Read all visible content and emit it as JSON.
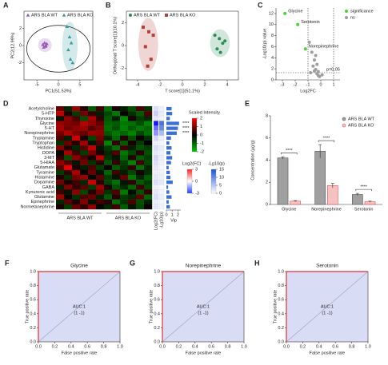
{
  "chart_data": [
    {
      "type": "scatter",
      "panel": "A",
      "xlabel": "PC1(51.53%)",
      "ylabel": "PC2(12.99%)",
      "xlim": [
        -8,
        8
      ],
      "ylim": [
        -4,
        4
      ],
      "xticks": [
        -5,
        0,
        5
      ],
      "yticks": [
        -2,
        0,
        2
      ],
      "legend": "upper left",
      "series": [
        {
          "name": "ARS BLA WT",
          "color": "#9b59b6",
          "marker": "triangle",
          "x": [
            -3.6,
            -3.2,
            -3.0,
            -2.7,
            -3.4,
            -2.9
          ],
          "values": [
            0.1,
            0.3,
            -0.1,
            0.2,
            -0.2,
            0.0
          ]
        },
        {
          "name": "ARS BLA KO",
          "color": "#3a9a9a",
          "marker": "triangle",
          "x": [
            2.0,
            2.6,
            3.0,
            2.3,
            2.8,
            3.3
          ],
          "values": [
            2.2,
            1.0,
            0.3,
            -0.5,
            -1.6,
            -2.0
          ]
        }
      ]
    },
    {
      "type": "scatter",
      "panel": "B",
      "xlabel": "T score[1](51.1%)",
      "ylabel": "Orthogonal T score[1](10.1%)",
      "xlim": [
        -5,
        5
      ],
      "ylim": [
        -3,
        3
      ],
      "xticks": [
        -4,
        -2,
        0,
        2,
        4
      ],
      "yticks": [
        -2,
        0,
        2
      ],
      "legend": "upper left",
      "series": [
        {
          "name": "ARS BLA WT",
          "color": "#2e8b57",
          "marker": "circle",
          "x": [
            2.9,
            3.3,
            3.6,
            3.1,
            3.8,
            3.4
          ],
          "values": [
            0.9,
            0.6,
            0.2,
            -0.3,
            0.4,
            -0.6
          ]
        },
        {
          "name": "ARS BLA KO",
          "color": "#b5403a",
          "marker": "square",
          "x": [
            -3.5,
            -3.0,
            -2.6,
            -3.3,
            -2.8,
            -3.1
          ],
          "values": [
            1.6,
            1.2,
            0.9,
            -0.1,
            -1.2,
            -1.8
          ]
        }
      ]
    },
    {
      "type": "scatter",
      "panel": "C",
      "xlabel": "Log2FC",
      "ylabel": "-Log10(p) value",
      "xlim": [
        -3.5,
        1.5
      ],
      "ylim": [
        0,
        13
      ],
      "xticks": [
        -3,
        -2,
        -1,
        0,
        1
      ],
      "yticks": [
        0,
        2,
        4,
        6,
        8,
        10,
        12
      ],
      "legend": "outside right",
      "hline": 1.3,
      "vlines": [
        -1,
        1
      ],
      "threshold_label": "p=0.05",
      "series": [
        {
          "name": "significance",
          "color": "#4cd137",
          "marker": "circle",
          "x": [
            -2.8,
            -1.8,
            -1.2
          ],
          "values": [
            12.0,
            10.0,
            5.6
          ],
          "labels": [
            "Glycine",
            "Serotonin",
            "Norepinephrine"
          ]
        },
        {
          "name": "ns",
          "color": "#9e9e9e",
          "marker": "circle",
          "x": [
            -0.9,
            -0.7,
            -0.6,
            -0.5,
            -0.4,
            -0.4,
            -0.3,
            -0.3,
            -0.2,
            -0.2,
            -0.1,
            -0.5,
            -0.8,
            0.1
          ],
          "values": [
            6.8,
            5.0,
            2.5,
            1.6,
            1.9,
            4.4,
            1.1,
            2.8,
            0.8,
            1.5,
            0.6,
            3.6,
            1.3,
            0.9
          ]
        }
      ]
    },
    {
      "type": "heatmap",
      "panel": "D",
      "rows": [
        "Acetylcholine",
        "5-HTP",
        "Thyroxine",
        "Glycine",
        "5-HT",
        "Norepinephrine",
        "Tryptamine",
        "Tryptophan",
        "Histidine",
        "DOPA",
        "3-MT",
        "5-HIAA",
        "Glutamate",
        "Tyramine",
        "Histamine",
        "Dopamine",
        "GABA",
        "Kynurenic acid",
        "Glutamine",
        "Epinephrine",
        "Normetanephrine"
      ],
      "groups": [
        "ARS BLA WT",
        "ARS BLA KO"
      ],
      "values": [
        [
          0.8,
          -0.4,
          1.2,
          0.3,
          -0.9,
          0.5,
          -1.1,
          0.2,
          -0.3,
          -0.8,
          0.6,
          -0.5
        ],
        [
          1.5,
          0.2,
          -0.6,
          0.9,
          0.4,
          -0.3,
          -0.7,
          -1.2,
          0.1,
          -0.5,
          -0.9,
          0.6
        ],
        [
          -0.2,
          1.1,
          0.6,
          -0.8,
          1.3,
          0.4,
          -0.9,
          -0.3,
          -1.4,
          0.2,
          -0.6,
          -0.4
        ],
        [
          1.2,
          1.0,
          0.9,
          1.4,
          1.1,
          0.8,
          -1.0,
          -0.9,
          -1.2,
          -1.1,
          -0.8,
          -1.3
        ],
        [
          1.3,
          0.9,
          1.1,
          1.2,
          0.7,
          1.0,
          -1.1,
          -0.8,
          -1.3,
          -0.9,
          -1.2,
          -1.0
        ],
        [
          0.9,
          1.4,
          1.0,
          0.8,
          1.2,
          1.1,
          -0.9,
          -1.2,
          -1.0,
          -1.3,
          -0.7,
          -1.1
        ],
        [
          0.6,
          -0.3,
          1.6,
          0.2,
          -0.7,
          0.9,
          -0.4,
          -1.0,
          0.3,
          -0.8,
          0.1,
          -0.5
        ],
        [
          -0.5,
          0.8,
          0.3,
          1.2,
          -0.2,
          0.6,
          -1.3,
          0.4,
          -0.9,
          0.2,
          -0.6,
          0.0
        ],
        [
          1.0,
          0.3,
          -0.4,
          0.7,
          1.5,
          -0.2,
          -0.6,
          -1.1,
          0.5,
          -0.3,
          -0.8,
          -0.6
        ],
        [
          -0.1,
          1.3,
          0.5,
          -0.6,
          0.9,
          0.2,
          -0.4,
          0.6,
          -1.2,
          -0.7,
          0.3,
          -0.8
        ],
        [
          0.4,
          -0.8,
          1.1,
          0.6,
          0.2,
          1.4,
          -0.5,
          -0.2,
          -1.0,
          0.3,
          -0.9,
          -0.6
        ],
        [
          1.1,
          0.6,
          -0.2,
          0.9,
          -0.5,
          0.3,
          -0.8,
          0.4,
          -0.6,
          -1.3,
          0.5,
          -0.7
        ],
        [
          0.7,
          1.8,
          0.2,
          -0.3,
          0.6,
          -0.6,
          0.1,
          -0.9,
          -0.5,
          0.4,
          -1.1,
          -0.4
        ],
        [
          -0.6,
          0.4,
          1.3,
          0.1,
          0.8,
          -0.2,
          -1.0,
          0.5,
          -0.3,
          -0.7,
          0.2,
          -0.5
        ],
        [
          0.3,
          -0.5,
          0.9,
          1.2,
          -0.1,
          0.7,
          -0.6,
          -0.2,
          0.8,
          -1.2,
          -0.4,
          -0.9
        ],
        [
          0.9,
          0.2,
          0.5,
          -0.4,
          1.6,
          0.3,
          -0.7,
          -1.1,
          -0.2,
          0.4,
          -0.9,
          -0.6
        ],
        [
          -0.3,
          1.0,
          0.4,
          0.7,
          -0.6,
          1.2,
          0.2,
          -0.8,
          -0.4,
          -1.0,
          0.5,
          -0.7
        ],
        [
          0.5,
          -0.2,
          1.1,
          -0.7,
          0.3,
          0.9,
          -0.5,
          0.6,
          -1.2,
          -0.1,
          -0.8,
          0.4
        ],
        [
          1.2,
          0.1,
          -0.5,
          0.6,
          0.8,
          -0.3,
          -0.9,
          0.3,
          -0.6,
          -0.4,
          0.7,
          -1.0
        ],
        [
          -0.4,
          0.7,
          0.2,
          1.0,
          -0.2,
          0.5,
          0.3,
          -1.1,
          -0.5,
          0.6,
          -0.8,
          -0.3
        ],
        [
          0.2,
          -0.6,
          0.8,
          0.4,
          1.1,
          -0.1,
          -0.4,
          0.5,
          -0.9,
          -0.2,
          -0.7,
          0.1
        ]
      ],
      "scale": {
        "title": "Scaled Intensity",
        "lim": [
          -2,
          2
        ],
        "ticks": [
          2,
          1,
          0,
          -1,
          -2
        ]
      },
      "log2fc": {
        "label": "Log2(FC)",
        "title": "Log2(FC)",
        "lim": [
          -3,
          3
        ],
        "ticks": [
          3,
          0,
          -3
        ],
        "values": [
          -0.4,
          -0.6,
          -0.3,
          -2.7,
          -1.7,
          -1.3,
          -0.5,
          -0.2,
          -0.4,
          -0.3,
          -0.5,
          -0.4,
          -0.3,
          -0.2,
          -0.3,
          -0.4,
          -0.2,
          -0.3,
          -0.4,
          -0.2,
          -0.3
        ]
      },
      "neglog10p": {
        "label": "-Lg10(p)",
        "title": "-Lg10(p)",
        "lim": [
          0,
          15
        ],
        "ticks": [
          15,
          10,
          5,
          0
        ],
        "values": [
          1.2,
          1.5,
          0.9,
          12.0,
          10.0,
          5.6,
          1.3,
          0.8,
          1.6,
          1.1,
          1.4,
          1.2,
          0.7,
          1.0,
          1.3,
          1.9,
          0.6,
          0.9,
          1.4,
          0.8,
          1.0
        ]
      },
      "vip": {
        "label": "Vip",
        "xlim": [
          0,
          2.5
        ],
        "xticks": [
          0,
          1,
          2
        ],
        "values": [
          0.9,
          1.0,
          0.6,
          2.2,
          2.0,
          1.8,
          0.8,
          0.5,
          0.9,
          0.7,
          1.0,
          0.8,
          0.4,
          0.6,
          0.7,
          1.1,
          0.3,
          0.5,
          0.9,
          0.4,
          0.6
        ]
      },
      "stars": [
        null,
        null,
        null,
        "****",
        "****",
        "****",
        null,
        null,
        null,
        null,
        null,
        null,
        null,
        null,
        null,
        null,
        null,
        null,
        null,
        null,
        null
      ]
    },
    {
      "type": "bar",
      "panel": "E",
      "ylabel": "Concentration (μg/g)",
      "categories": [
        "Glycine",
        "Norepinephrine",
        "Serotonin"
      ],
      "ylim": [
        0,
        8
      ],
      "yticks": [
        0,
        2,
        4,
        6,
        8
      ],
      "legend": "upper right",
      "series": [
        {
          "name": "ARS BLA WT",
          "color": "#a0a0a0",
          "edgecolor": "#555555",
          "values": [
            4.2,
            4.8,
            0.9
          ],
          "errors": [
            0.1,
            0.6,
            0.1
          ]
        },
        {
          "name": "ARS BLA KO",
          "color": "#f6c1c1",
          "edgecolor": "#d9534f",
          "values": [
            0.3,
            1.7,
            0.25
          ],
          "errors": [
            0.05,
            0.2,
            0.05
          ]
        }
      ],
      "significance_labels": [
        "****",
        "****",
        "****"
      ]
    },
    {
      "type": "line",
      "panel": "F",
      "title": "Glycine",
      "xlabel": "False positive rate",
      "ylabel": "True positive rate",
      "xlim": [
        0,
        1
      ],
      "ylim": [
        0,
        1
      ],
      "xticks": [
        {
          "value": 0,
          "label": "0.0"
        },
        {
          "value": 0.2,
          "label": "0.2"
        },
        {
          "value": 0.4,
          "label": "0.4"
        },
        {
          "value": 0.6,
          "label": "0.6"
        },
        {
          "value": 0.8,
          "label": "0.8"
        },
        {
          "value": 1,
          "label": "1.0"
        }
      ],
      "yticks": [
        {
          "value": 0,
          "label": "0.0"
        },
        {
          "value": 0.2,
          "label": "0.2"
        },
        {
          "value": 0.4,
          "label": "0.4"
        },
        {
          "value": 0.6,
          "label": "0.6"
        },
        {
          "value": 0.8,
          "label": "0.8"
        },
        {
          "value": 1,
          "label": "1.0"
        }
      ],
      "series": [
        {
          "color": "#e03030",
          "x": [
            0,
            0,
            1
          ],
          "values": [
            0,
            1,
            1
          ]
        }
      ],
      "annotations": [
        "AUC:1",
        "(1 -1)"
      ]
    },
    {
      "type": "line",
      "panel": "G",
      "title": "Norepinephrine",
      "xlabel": "False positive rate",
      "ylabel": "True positive rate",
      "xlim": [
        0,
        1
      ],
      "ylim": [
        0,
        1
      ],
      "xticks": [
        {
          "value": 0,
          "label": "0.0"
        },
        {
          "value": 0.2,
          "label": "0.2"
        },
        {
          "value": 0.4,
          "label": "0.4"
        },
        {
          "value": 0.6,
          "label": "0.6"
        },
        {
          "value": 0.8,
          "label": "0.8"
        },
        {
          "value": 1,
          "label": "1.0"
        }
      ],
      "yticks": [
        {
          "value": 0,
          "label": "0.0"
        },
        {
          "value": 0.2,
          "label": "0.2"
        },
        {
          "value": 0.4,
          "label": "0.4"
        },
        {
          "value": 0.6,
          "label": "0.6"
        },
        {
          "value": 0.8,
          "label": "0.8"
        },
        {
          "value": 1,
          "label": "1.0"
        }
      ],
      "series": [
        {
          "color": "#e03030",
          "x": [
            0,
            0,
            1
          ],
          "values": [
            0,
            1,
            1
          ]
        }
      ],
      "annotations": [
        "AUC:1",
        "(1 -1)"
      ]
    },
    {
      "type": "line",
      "panel": "H",
      "title": "Serotonin",
      "xlabel": "False positive rate",
      "ylabel": "True positive rate",
      "xlim": [
        0,
        1
      ],
      "ylim": [
        0,
        1
      ],
      "xticks": [
        {
          "value": 0,
          "label": "0.0"
        },
        {
          "value": 0.2,
          "label": "0.2"
        },
        {
          "value": 0.4,
          "label": "0.4"
        },
        {
          "value": 0.6,
          "label": "0.6"
        },
        {
          "value": 0.8,
          "label": "0.8"
        },
        {
          "value": 1,
          "label": "1.0"
        }
      ],
      "yticks": [
        {
          "value": 0,
          "label": "0.0"
        },
        {
          "value": 0.2,
          "label": "0.2"
        },
        {
          "value": 0.4,
          "label": "0.4"
        },
        {
          "value": 0.6,
          "label": "0.6"
        },
        {
          "value": 0.8,
          "label": "0.8"
        },
        {
          "value": 1,
          "label": "1.0"
        }
      ],
      "series": [
        {
          "color": "#e03030",
          "x": [
            0,
            0,
            1
          ],
          "values": [
            0,
            1,
            1
          ]
        }
      ],
      "annotations": [
        "AUC:1",
        "(1 -1)"
      ]
    }
  ]
}
